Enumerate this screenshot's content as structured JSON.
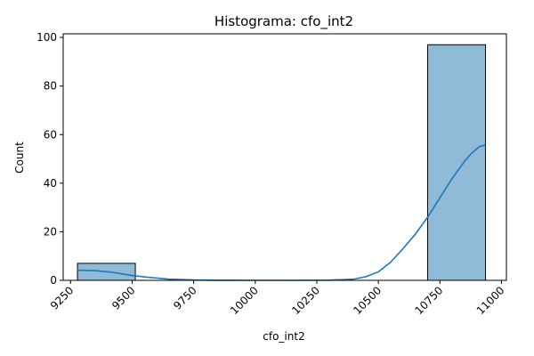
{
  "chart_data": {
    "type": "bar",
    "title": "Histograma: cfo_int2",
    "xlabel": "cfo_int2",
    "ylabel": "Count",
    "xlim": [
      9220,
      11020
    ],
    "ylim": [
      0,
      101.5
    ],
    "xticks": [
      9250,
      9500,
      9750,
      10000,
      10250,
      10500,
      10750,
      11000
    ],
    "yticks": [
      0,
      20,
      40,
      60,
      80,
      100
    ],
    "xtick_rotation": 45,
    "grid": false,
    "bins": [
      {
        "x0": 9278,
        "x1": 9513,
        "count": 7
      },
      {
        "x0": 9513,
        "x1": 9748,
        "count": 0
      },
      {
        "x0": 9748,
        "x1": 9983,
        "count": 0
      },
      {
        "x0": 9983,
        "x1": 10218,
        "count": 0
      },
      {
        "x0": 10218,
        "x1": 10453,
        "count": 0
      },
      {
        "x0": 10453,
        "x1": 10700,
        "count": 0
      },
      {
        "x0": 10700,
        "x1": 10935,
        "count": 97
      }
    ],
    "kde": {
      "name": "",
      "x": [
        9278,
        9350,
        9420,
        9500,
        9560,
        9650,
        9750,
        9850,
        10000,
        10150,
        10300,
        10400,
        10450,
        10500,
        10550,
        10600,
        10650,
        10700,
        10750,
        10800,
        10850,
        10880,
        10910,
        10935
      ],
      "y": [
        4.2,
        4.0,
        3.3,
        2.0,
        1.3,
        0.5,
        0.15,
        0.03,
        0.0,
        0.0,
        0.05,
        0.5,
        1.5,
        3.5,
        7.5,
        13.0,
        19.0,
        26.0,
        34.0,
        42.0,
        49.0,
        52.5,
        55.0,
        55.8
      ]
    },
    "colors": {
      "bar_fill": "#1f77b4",
      "bar_fill_alpha": 0.5,
      "bar_edge": "#000000",
      "kde_line": "#1f77b4"
    }
  }
}
